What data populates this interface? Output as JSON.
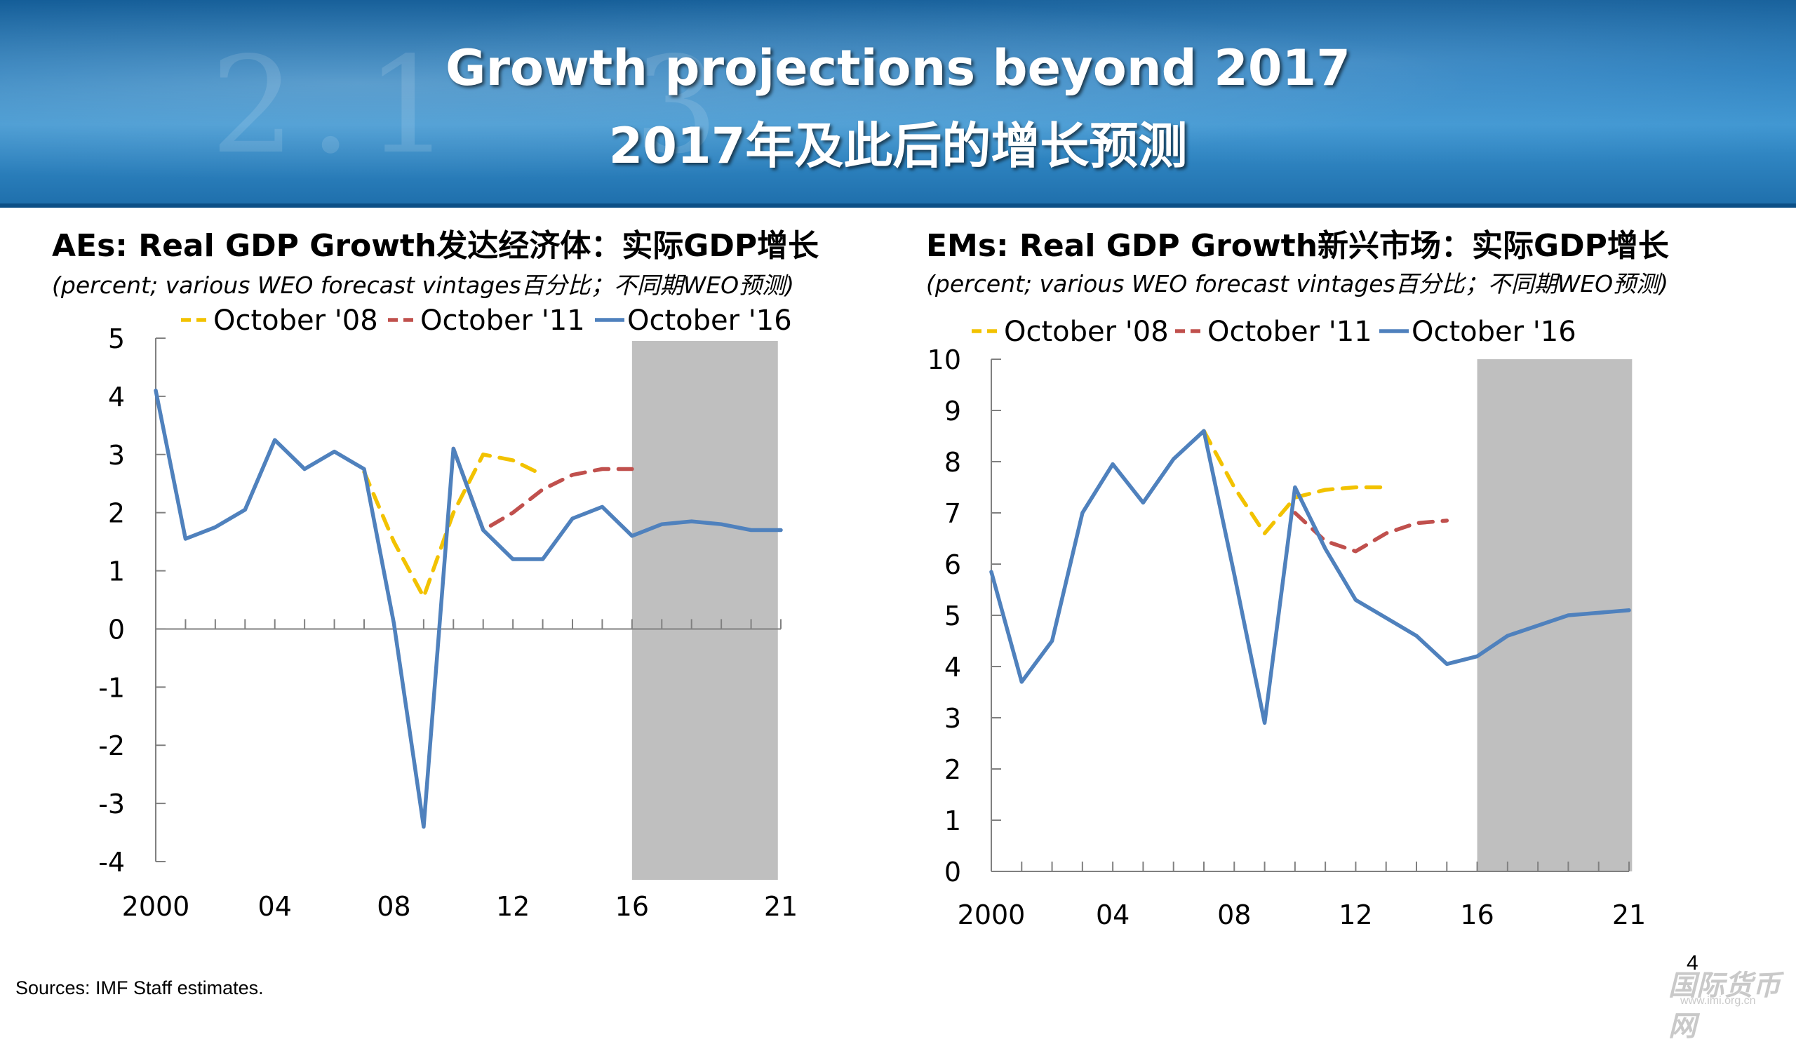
{
  "header": {
    "title_en": "Growth projections beyond 2017",
    "title_zh": "2017年及此后的增长预测"
  },
  "colors": {
    "banner": "#1f77b8",
    "oct08": "#f2c200",
    "oct11": "#c0504d",
    "oct16": "#4f81bd",
    "shade": "#bfbfbf"
  },
  "source": "Sources: IMF Staff estimates.",
  "page_number": "4",
  "watermark": {
    "text": "国际货币网",
    "url": "www.imi.org.cn"
  },
  "chart_data": [
    {
      "type": "line",
      "title": "AEs: Real GDP Growth发达经济体：实际GDP增长",
      "subtitle": "(percent; various WEO forecast vintages百分比；不同期WEO预测)",
      "xlabel": "",
      "ylabel": "",
      "ylim": [
        -4,
        5
      ],
      "yticks": [
        5,
        4,
        3,
        2,
        1,
        0,
        -1,
        -2,
        -3,
        -4
      ],
      "xlim": [
        2000,
        2021
      ],
      "xtick_labels": [
        {
          "x": 2000,
          "label": "2000"
        },
        {
          "x": 2004,
          "label": "04"
        },
        {
          "x": 2008,
          "label": "08"
        },
        {
          "x": 2012,
          "label": "12"
        },
        {
          "x": 2016,
          "label": "16"
        },
        {
          "x": 2021,
          "label": "21"
        }
      ],
      "shaded_region": [
        2016,
        2020.9
      ],
      "legend_position": "top",
      "series": [
        {
          "name": "October '08",
          "style": "dashed",
          "x": [
            2007,
            2008,
            2009,
            2010,
            2011,
            2012,
            2013
          ],
          "y": [
            2.7,
            1.5,
            0.55,
            2.0,
            3.0,
            2.9,
            2.65
          ]
        },
        {
          "name": "October '11",
          "style": "dashed",
          "x": [
            2010,
            2011,
            2012,
            2013,
            2014,
            2015,
            2016
          ],
          "y": [
            3.1,
            1.7,
            2.0,
            2.4,
            2.65,
            2.75,
            2.75
          ]
        },
        {
          "name": "October '16",
          "style": "solid",
          "x": [
            2000,
            2001,
            2002,
            2003,
            2004,
            2005,
            2006,
            2007,
            2008,
            2009,
            2010,
            2011,
            2012,
            2013,
            2014,
            2015,
            2016,
            2017,
            2018,
            2019,
            2020,
            2021
          ],
          "y": [
            4.1,
            1.55,
            1.75,
            2.05,
            3.25,
            2.75,
            3.05,
            2.75,
            0.1,
            -3.4,
            3.1,
            1.7,
            1.2,
            1.2,
            1.9,
            2.1,
            1.6,
            1.8,
            1.85,
            1.8,
            1.7,
            1.7
          ]
        }
      ]
    },
    {
      "type": "line",
      "title": "EMs: Real GDP Growth新兴市场：实际GDP增长",
      "subtitle": "(percent; various WEO forecast vintages百分比；不同期WEO预测)",
      "xlabel": "",
      "ylabel": "",
      "ylim": [
        0,
        10
      ],
      "yticks": [
        10,
        9,
        8,
        7,
        6,
        5,
        4,
        3,
        2,
        1,
        0
      ],
      "xlim": [
        2000,
        2021
      ],
      "xtick_labels": [
        {
          "x": 2000,
          "label": "2000"
        },
        {
          "x": 2004,
          "label": "04"
        },
        {
          "x": 2008,
          "label": "08"
        },
        {
          "x": 2012,
          "label": "12"
        },
        {
          "x": 2016,
          "label": "16"
        },
        {
          "x": 2021,
          "label": "21"
        }
      ],
      "shaded_region": [
        2016,
        2021.1
      ],
      "legend_position": "top",
      "series": [
        {
          "name": "October '08",
          "style": "dashed",
          "x": [
            2007,
            2008,
            2009,
            2010,
            2011,
            2012,
            2013
          ],
          "y": [
            8.6,
            7.5,
            6.6,
            7.3,
            7.45,
            7.5,
            7.5
          ]
        },
        {
          "name": "October '11",
          "style": "dashed",
          "x": [
            2010,
            2011,
            2012,
            2013,
            2014,
            2015
          ],
          "y": [
            7.0,
            6.45,
            6.25,
            6.6,
            6.8,
            6.85
          ]
        },
        {
          "name": "October '16",
          "style": "solid",
          "x": [
            2000,
            2001,
            2002,
            2003,
            2004,
            2005,
            2006,
            2007,
            2008,
            2009,
            2010,
            2011,
            2012,
            2013,
            2014,
            2015,
            2016,
            2017,
            2018,
            2019,
            2020,
            2021
          ],
          "y": [
            5.85,
            3.7,
            4.5,
            7.0,
            7.95,
            7.2,
            8.05,
            8.6,
            5.8,
            2.9,
            7.5,
            6.3,
            5.3,
            4.95,
            4.6,
            4.05,
            4.2,
            4.6,
            4.8,
            5.0,
            5.05,
            5.1
          ]
        }
      ]
    }
  ]
}
